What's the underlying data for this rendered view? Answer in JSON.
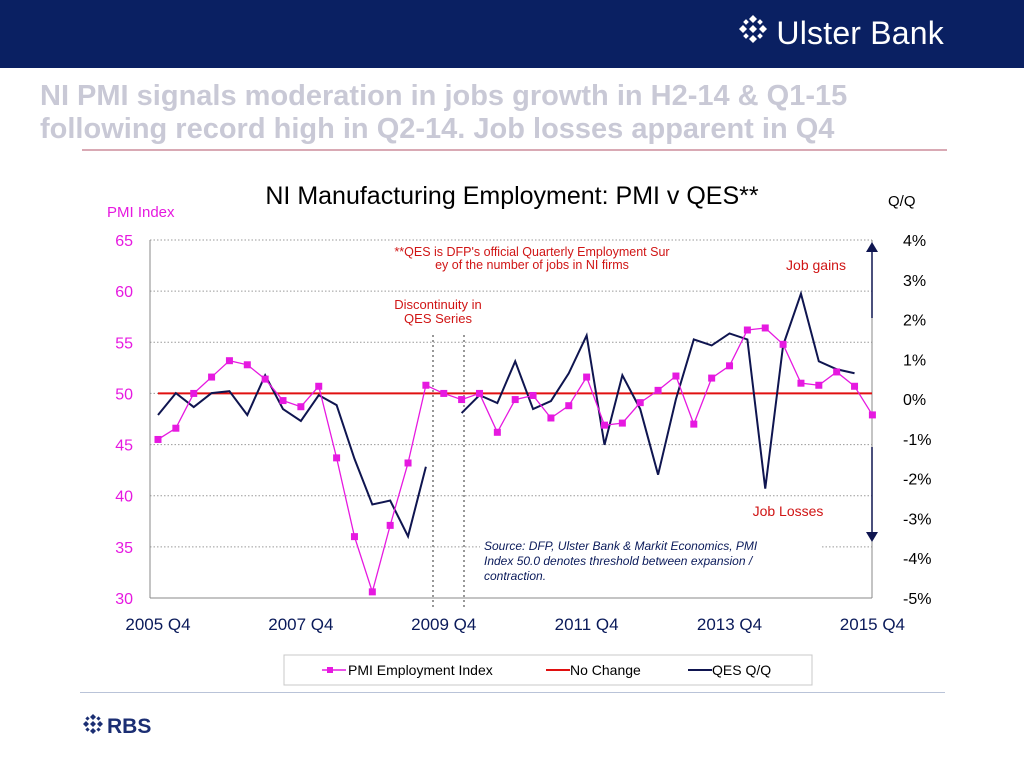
{
  "header": {
    "brand_name": "Ulster Bank",
    "logo_icon": "ulster-bank-logo-icon",
    "bar_color": "#0a2062"
  },
  "headline": {
    "line1": "NI PMI signals moderation in jobs growth in H2-14 & Q1-15",
    "line2": "following record high in Q2-14. Job losses apparent in Q4"
  },
  "footer": {
    "brand_name": "RBS",
    "logo_icon": "rbs-logo-icon"
  },
  "chart_data": {
    "type": "line",
    "title": "NI Manufacturing Employment: PMI v QES**",
    "ylabel_left": "PMI Index",
    "ylabel_right": "Q/Q",
    "y_left_range": [
      30,
      65
    ],
    "y_left_ticks": [
      "65",
      "60",
      "55",
      "50",
      "45",
      "40",
      "35",
      "30"
    ],
    "y_right_range": [
      -5,
      4
    ],
    "y_right_ticks": [
      "4%",
      "3%",
      "2%",
      "1%",
      "0%",
      "-1%",
      "-2%",
      "-3%",
      "-4%",
      "-5%"
    ],
    "x_ticks": [
      "2005 Q4",
      "2007 Q4",
      "2009 Q4",
      "2011 Q4",
      "2013 Q4",
      "2015 Q4"
    ],
    "grid": "horizontal dotted",
    "colors": {
      "pmi": "#e619e0",
      "no_change": "#e01010",
      "qes": "#0f1550",
      "annotation": "#d01515"
    },
    "series": [
      {
        "name": "PMI Employment Index",
        "axis": "left",
        "values": [
          45.5,
          46.6,
          50.0,
          51.6,
          53.2,
          52.8,
          51.4,
          49.3,
          48.7,
          50.7,
          43.7,
          36.0,
          30.6,
          37.1,
          43.2,
          50.8,
          50.0,
          49.4,
          50.0,
          46.2,
          49.4,
          49.8,
          47.6,
          48.8,
          51.6,
          46.9,
          47.1,
          49.1,
          50.3,
          51.7,
          47.0,
          51.5,
          52.7,
          56.2,
          56.4,
          54.8,
          51.0,
          50.8,
          52.1,
          50.7,
          47.9
        ]
      },
      {
        "name": "No Change",
        "axis": "left",
        "values": [
          50,
          50
        ]
      },
      {
        "name": "QES Q/Q",
        "axis": "right",
        "values": [
          -0.4,
          0.15,
          -0.2,
          0.15,
          0.2,
          -0.4,
          0.6,
          -0.25,
          -0.55,
          0.1,
          -0.15,
          -1.5,
          -2.65,
          -2.55,
          -3.45,
          -1.7,
          null,
          -0.35,
          0.1,
          -0.1,
          0.95,
          -0.25,
          -0.05,
          0.65,
          1.6,
          -1.15,
          0.6,
          -0.25,
          -1.9,
          0.0,
          1.5,
          1.35,
          1.65,
          1.5,
          -2.25,
          1.35,
          2.65,
          0.95,
          0.75,
          0.65
        ]
      }
    ],
    "annotations": {
      "qes_note": "**QES is DFP's official Quarterly Employment Survey of the number of jobs in NI firms",
      "discontinuity": "Discontinuity in QES Series",
      "job_gains": "Job gains",
      "job_losses": "Job Losses",
      "source": "Source: DFP, Ulster Bank & Markit Economics, PMI Index 50.0 denotes threshold between expansion / contraction."
    },
    "legend": {
      "placement": "bottom",
      "items": [
        "PMI Employment Index",
        "No Change",
        "QES Q/Q"
      ]
    }
  }
}
